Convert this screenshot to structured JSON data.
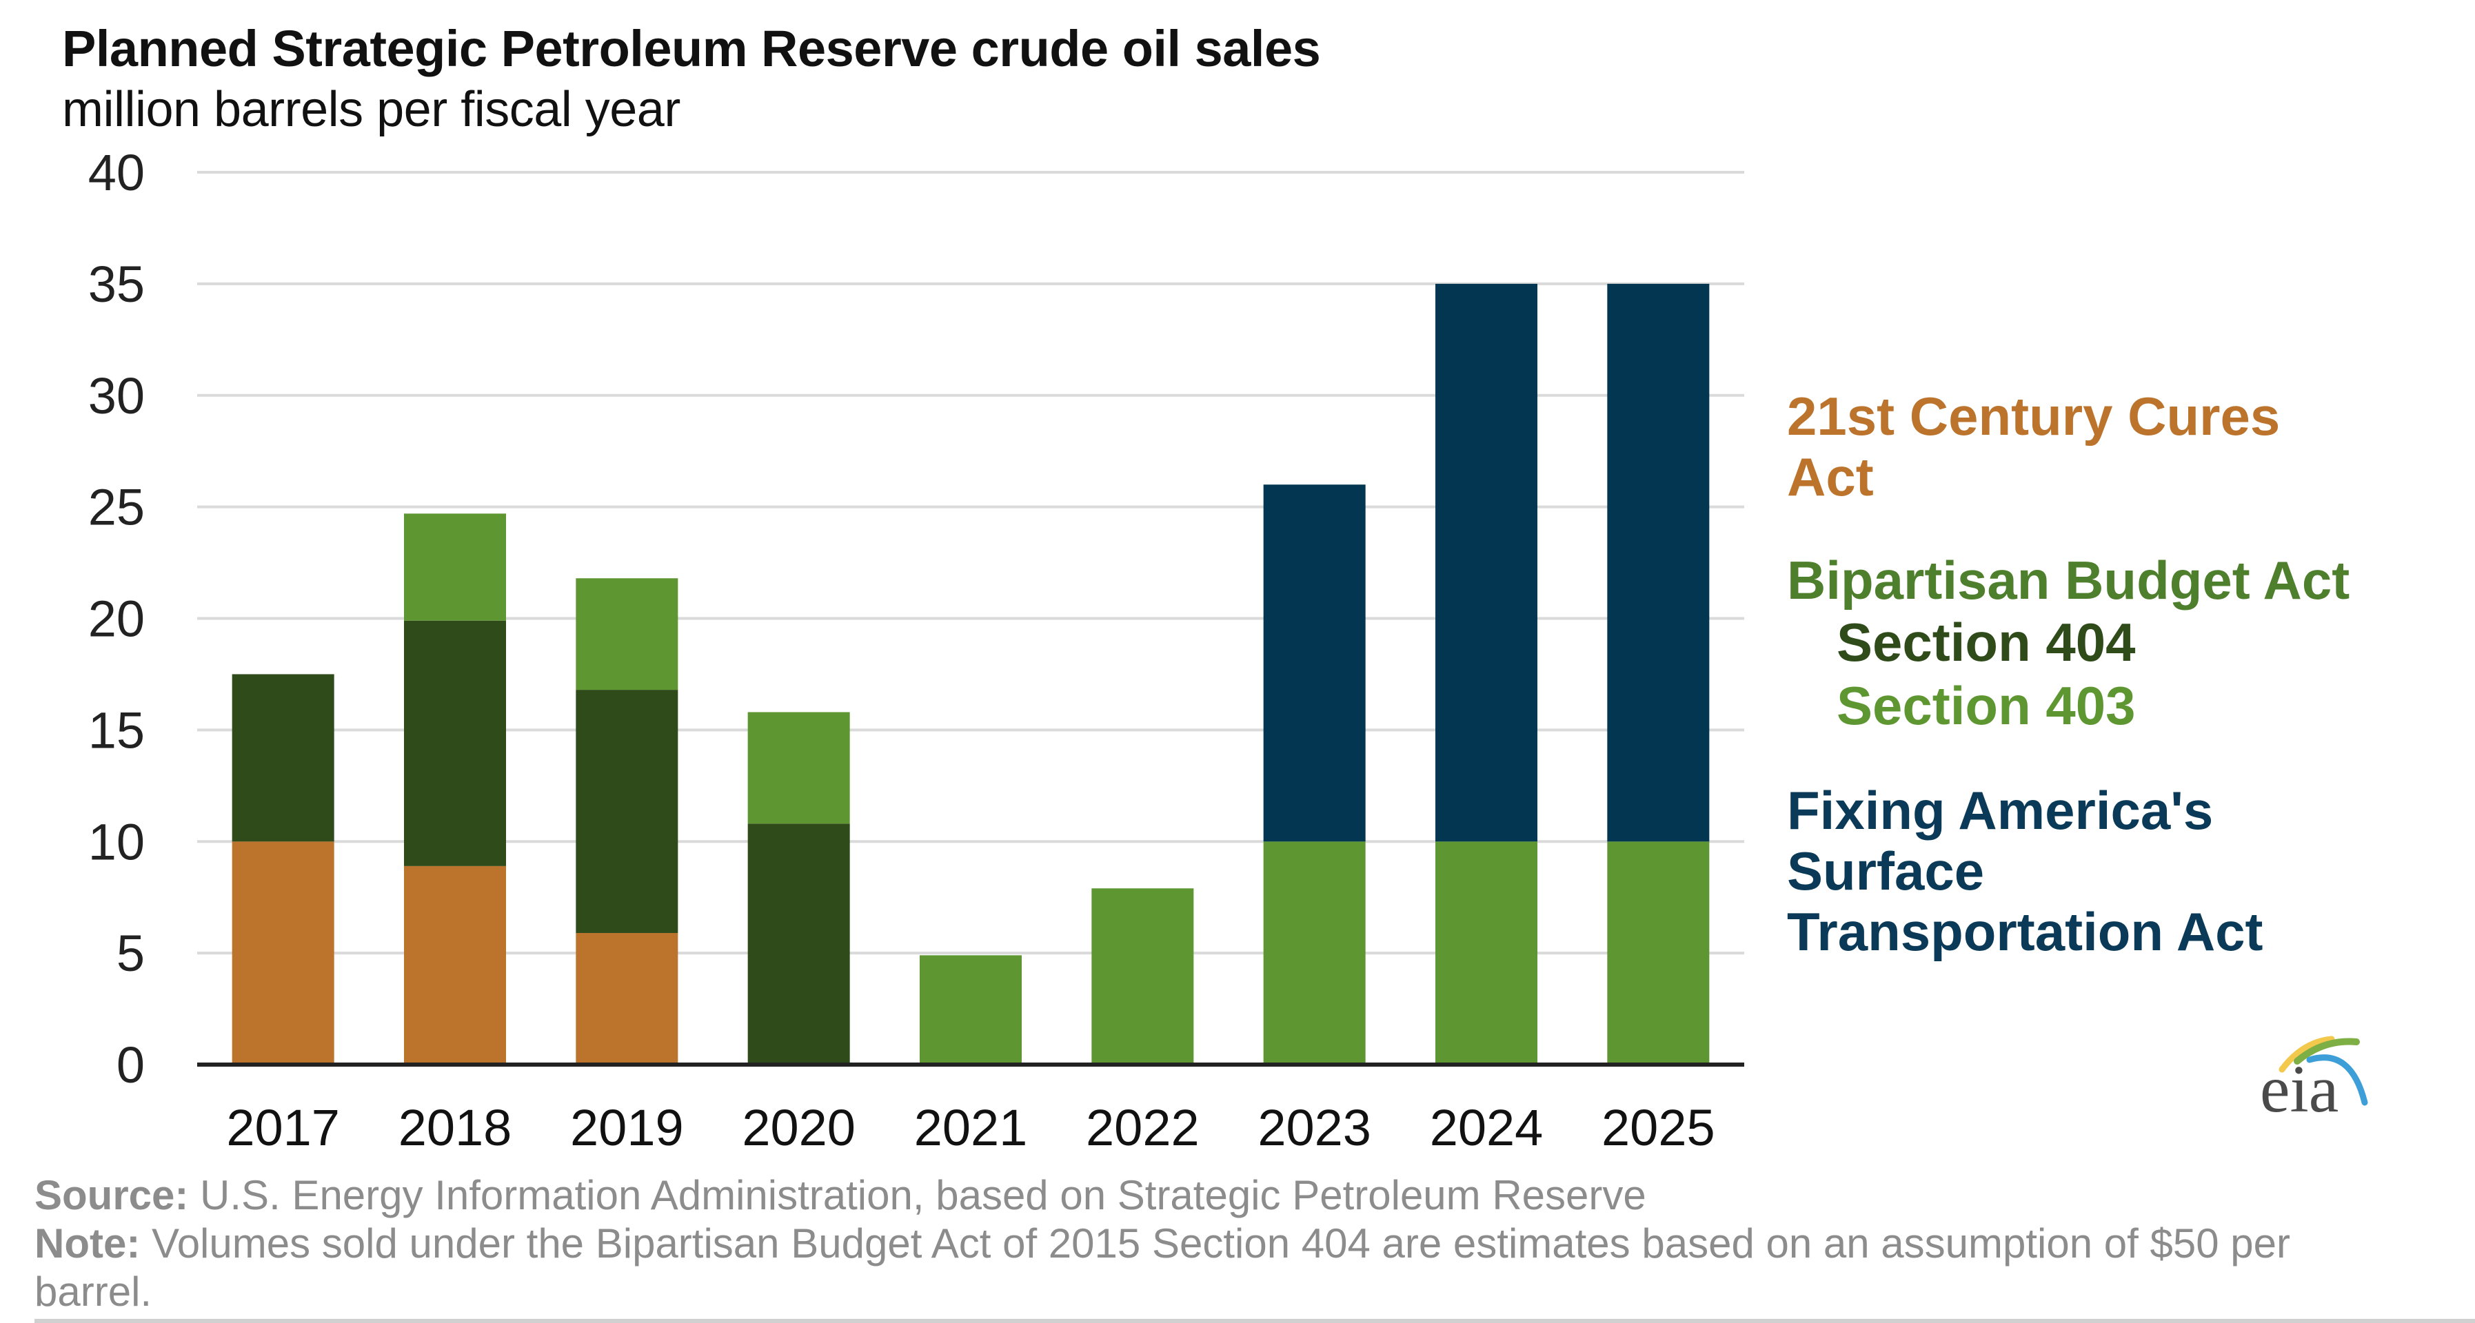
{
  "header": {
    "title": "Planned Strategic Petroleum Reserve crude oil sales",
    "subtitle": "million barrels per fiscal year"
  },
  "legend": {
    "cures": "21st Century Cures Act",
    "cures_line1": "21st Century Cures",
    "cures_line2": "Act",
    "bba": "Bipartisan Budget Act",
    "sec404": "Section 404",
    "sec403": "Section 403",
    "fast_line1": "Fixing America's",
    "fast_line2": "Surface",
    "fast_line3": "Transportation Act"
  },
  "footer": {
    "source_label": "Source:",
    "source_text": " U.S. Energy Information Administration, based on Strategic Petroleum Reserve",
    "note_label": "Note:",
    "note_text": " Volumes sold under the Bipartisan Budget Act of 2015 Section 404 are estimates based on an assumption of $50 per",
    "note_text_cont": "barrel."
  },
  "logo": {
    "text": "eia",
    "icon": "eia-logo-arcs"
  },
  "colors": {
    "cures": "#BC742D",
    "sec404": "#2F4B1A",
    "sec403": "#5E9732",
    "fast": "#033651",
    "grid": "#DADADA",
    "axis": "#222222",
    "bba_label": "#4E7F2C",
    "sec404_label": "#2F4B1A",
    "sec403_label": "#5E9732",
    "fast_label": "#0A3A57",
    "cures_label": "#BC742D"
  },
  "chart_data": {
    "type": "bar",
    "stacked": true,
    "title": "Planned Strategic Petroleum Reserve crude oil sales",
    "subtitle": "million barrels per fiscal year",
    "xlabel": "",
    "ylabel": "million barrels per fiscal year",
    "categories": [
      "2017",
      "2018",
      "2019",
      "2020",
      "2021",
      "2022",
      "2023",
      "2024",
      "2025"
    ],
    "ylim": [
      0,
      40
    ],
    "yticks": [
      0,
      5,
      10,
      15,
      20,
      25,
      30,
      35,
      40
    ],
    "grid": true,
    "legend_position": "right",
    "series": [
      {
        "name": "21st Century Cures Act",
        "color_key": "cures",
        "values": [
          10,
          8.9,
          5.9,
          0,
          0,
          0,
          0,
          0,
          0
        ]
      },
      {
        "name": "Bipartisan Budget Act Section 404",
        "color_key": "sec404",
        "values": [
          7.5,
          11.0,
          10.9,
          10.8,
          0,
          0,
          0,
          0,
          0
        ]
      },
      {
        "name": "Bipartisan Budget Act Section 403",
        "color_key": "sec403",
        "values": [
          0,
          4.8,
          5.0,
          5.0,
          4.9,
          7.9,
          10,
          10,
          10
        ]
      },
      {
        "name": "Fixing America's Surface Transportation Act",
        "color_key": "fast",
        "values": [
          0,
          0,
          0,
          0,
          0,
          0,
          16,
          25,
          25
        ]
      }
    ]
  }
}
